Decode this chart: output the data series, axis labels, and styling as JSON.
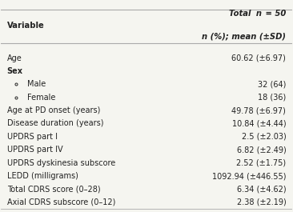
{
  "title_left": "Variable",
  "title_right_line1": "Total   n  = 50",
  "title_right_line2": "n (%); mean (±SD)",
  "rows": [
    {
      "label": "Age",
      "value": "60.62 (±6.97)",
      "bold": false,
      "indent": false,
      "bullet": false
    },
    {
      "label": "Sex",
      "value": "",
      "bold": true,
      "indent": false,
      "bullet": false
    },
    {
      "label": "Male",
      "value": "32 (64)",
      "bold": false,
      "indent": true,
      "bullet": true
    },
    {
      "label": "Female",
      "value": "18 (36)",
      "bold": false,
      "indent": true,
      "bullet": true
    },
    {
      "label": "Age at PD onset (years)",
      "value": "49.78 (±6.97)",
      "bold": false,
      "indent": false,
      "bullet": false
    },
    {
      "label": "Disease duration (years)",
      "value": "10.84 (±4.44)",
      "bold": false,
      "indent": false,
      "bullet": false
    },
    {
      "label": "UPDRS part I",
      "value": "2.5 (±2.03)",
      "bold": false,
      "indent": false,
      "bullet": false
    },
    {
      "label": "UPDRS part IV",
      "value": "6.82 (±2.49)",
      "bold": false,
      "indent": false,
      "bullet": false
    },
    {
      "label": "UPDRS dyskinesia subscore",
      "value": "2.52 (±1.75)",
      "bold": false,
      "indent": false,
      "bullet": false
    },
    {
      "label": "LEDD (milligrams)",
      "value": "1092.94 (±446.55)",
      "bold": false,
      "indent": false,
      "bullet": false
    },
    {
      "label": "Total CDRS score (0–28)",
      "value": "6.34 (±4.62)",
      "bold": false,
      "indent": false,
      "bullet": false
    },
    {
      "label": "Axial CDRS subscore (0–12)",
      "value": "2.38 (±2.19)",
      "bold": false,
      "indent": false,
      "bullet": false
    }
  ],
  "bg_color": "#f5f5f0",
  "header_line_color": "#aaaaaa",
  "text_color": "#222222",
  "font_size": 7.0,
  "header_font_size": 7.2
}
